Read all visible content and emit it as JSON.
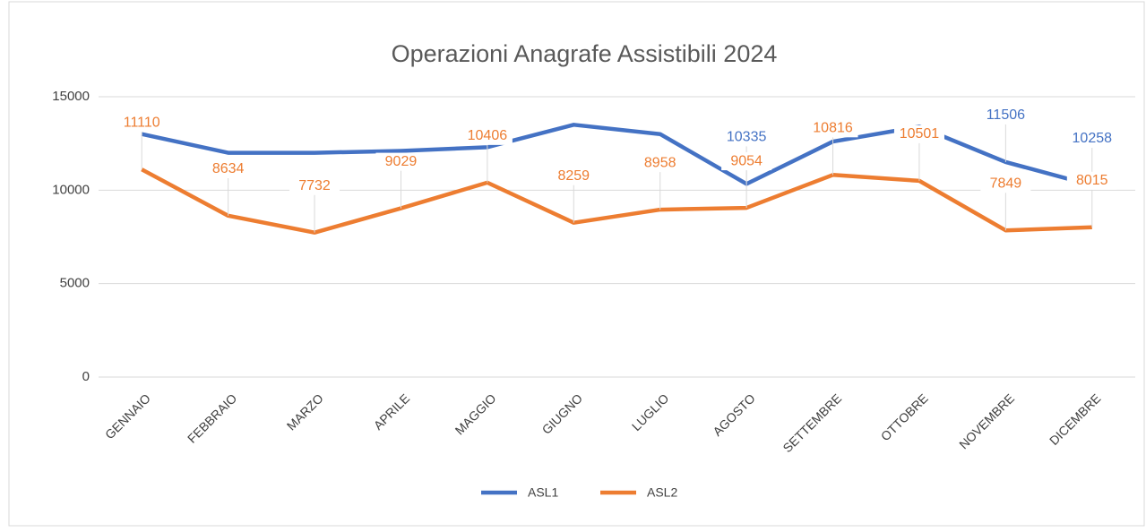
{
  "chart_data": {
    "type": "line",
    "title": "Operazioni Anagrafe Assistibili 2024",
    "categories": [
      "GENNAIO",
      "FEBBRAIO",
      "MARZO",
      "APRILE",
      "MAGGIO",
      "GIUGNO",
      "LUGLIO",
      "AGOSTO",
      "SETTEMBRE",
      "OTTOBRE",
      "NOVEMBRE",
      "DICEMBRE"
    ],
    "series": [
      {
        "name": "ASL1",
        "color": "#4472c4",
        "values": [
          13000,
          12000,
          12000,
          12100,
          12300,
          13500,
          13000,
          10335,
          12600,
          13400,
          11506,
          10258
        ],
        "value_labels": [
          null,
          null,
          null,
          null,
          null,
          null,
          null,
          "10335",
          null,
          null,
          "11506",
          "10258"
        ]
      },
      {
        "name": "ASL2",
        "color": "#ed7d31",
        "values": [
          11110,
          8634,
          7732,
          9029,
          10406,
          8259,
          8958,
          9054,
          10816,
          10501,
          7849,
          8015
        ]
      }
    ],
    "ylim": [
      0,
      15000
    ],
    "yticks": [
      0,
      5000,
      10000,
      15000
    ],
    "grid": true,
    "legend": "bottom"
  }
}
